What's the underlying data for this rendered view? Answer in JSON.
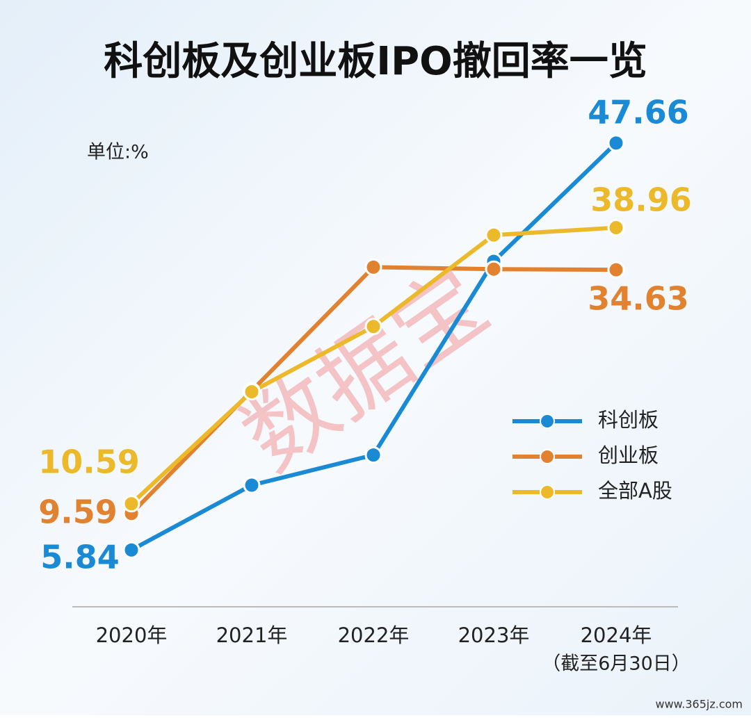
{
  "chart_data": {
    "type": "line",
    "title": "科创板及创业板IPO撤回率一览",
    "unit_label": "单位:%",
    "categories": [
      "2020年",
      "2021年",
      "2022年",
      "2023年",
      "2024年"
    ],
    "x_note": "（截至6月30日）",
    "series": [
      {
        "name": "科创板",
        "color": "#1a8ad4",
        "values": [
          5.84,
          12.5,
          15.6,
          35.5,
          47.66
        ]
      },
      {
        "name": "创业板",
        "color": "#e0822f",
        "values": [
          9.59,
          22.2,
          34.9,
          34.7,
          34.63
        ]
      },
      {
        "name": "全部A股",
        "color": "#ecb92a",
        "values": [
          10.59,
          22.1,
          28.8,
          38.2,
          38.96
        ]
      }
    ],
    "ylim": [
      0,
      50
    ],
    "legend": "right",
    "watermark": "数据宝",
    "source": "www.365jz.com"
  }
}
